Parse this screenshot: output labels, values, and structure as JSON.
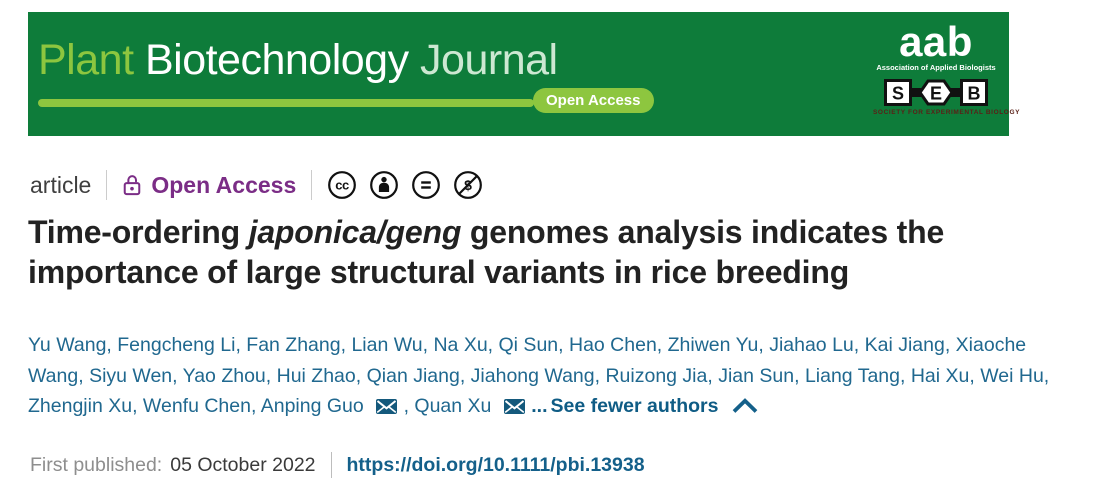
{
  "banner": {
    "journal_word1": "Plant",
    "journal_word2": " Biotechnology ",
    "journal_word3": "Journal",
    "open_access_badge": "Open Access",
    "aab": {
      "logo_text": "aab",
      "caption": "Association of Applied Biologists"
    },
    "seb": {
      "letters": [
        "S",
        "E",
        "B"
      ],
      "caption": "SOCIETY FOR EXPERIMENTAL BIOLOGY"
    }
  },
  "meta_row": {
    "content_type": "article",
    "open_access_label": "Open Access",
    "license_icons": [
      "cc-icon",
      "cc-by-icon",
      "cc-nd-icon",
      "cc-nc-icon"
    ]
  },
  "title": {
    "pre": "Time-ordering ",
    "italic": "japonica/geng",
    "post_line1": " genomes analysis indicates the importance of large structural variants in rice breeding"
  },
  "authors": {
    "list": [
      {
        "name": "Yu Wang"
      },
      {
        "name": "Fengcheng Li"
      },
      {
        "name": "Fan Zhang"
      },
      {
        "name": "Lian Wu"
      },
      {
        "name": "Na Xu"
      },
      {
        "name": "Qi Sun"
      },
      {
        "name": "Hao Chen"
      },
      {
        "name": "Zhiwen Yu"
      },
      {
        "name": "Jiahao Lu"
      },
      {
        "name": "Kai Jiang"
      },
      {
        "name": "Xiaoche Wang"
      },
      {
        "name": "Siyu Wen"
      },
      {
        "name": "Yao Zhou"
      },
      {
        "name": "Hui Zhao"
      },
      {
        "name": "Qian Jiang"
      },
      {
        "name": "Jiahong Wang"
      },
      {
        "name": "Ruizong Jia"
      },
      {
        "name": "Jian Sun"
      },
      {
        "name": "Liang Tang"
      },
      {
        "name": "Hai Xu"
      },
      {
        "name": "Wei Hu"
      },
      {
        "name": "Zhengjin Xu"
      },
      {
        "name": "Wenfu Chen"
      },
      {
        "name": "Anping Guo",
        "email": true
      },
      {
        "name": "Quan Xu",
        "email": true
      }
    ],
    "ellipsis": "...",
    "see_fewer_label": "See fewer authors"
  },
  "pub_row": {
    "first_published_label": "First published:",
    "date": "05 October 2022",
    "doi_url": "https://doi.org/10.1111/pbi.13938"
  },
  "colors": {
    "banner-green": "#0e7c3a",
    "accent-green": "#8dc63f",
    "pale-green": "#cde8d2",
    "oa-purple": "#7b2d86",
    "link-teal": "#20688f",
    "link-dark": "#0f5c85",
    "doi-blue": "#14608a",
    "seb-red": "#5a2017"
  }
}
